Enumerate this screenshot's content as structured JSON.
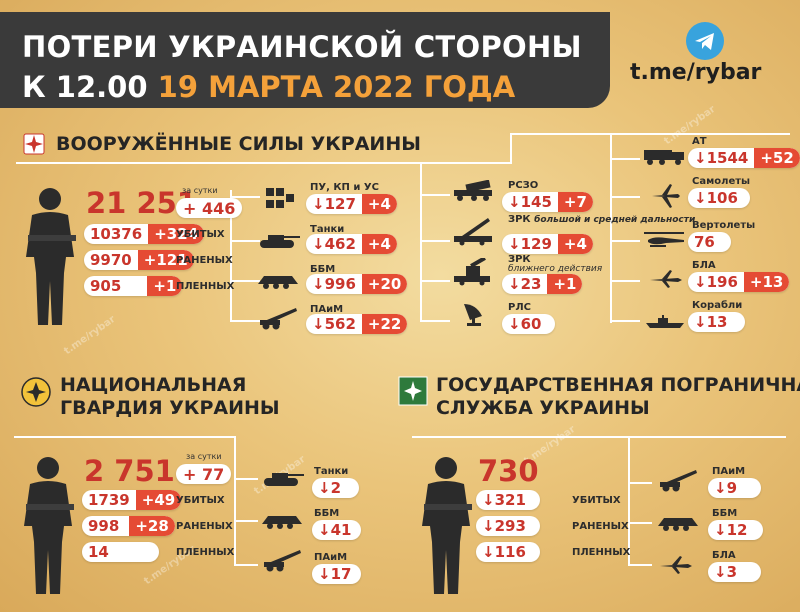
{
  "header": {
    "line1": "ПОТЕРИ УКРАИНСКОЙ СТОРОНЫ",
    "line2_prefix": "К 12.00",
    "line2_date": "19 МАРТА 2022 ГОДА"
  },
  "brand": {
    "text": "t.me/rybar",
    "icon": "telegram-icon"
  },
  "vsu": {
    "title": "ВООРУЖЁННЫЕ СИЛЫ УКРАИНЫ",
    "total": "21 251",
    "per_day_label": "за сутки",
    "per_day": "+ 446",
    "killed": "10376",
    "killed_delta": "+324",
    "killed_label": "УБИТЫХ",
    "wounded": "9970",
    "wounded_delta": "+121",
    "wounded_label": "РАНЕНЫХ",
    "captured": "905",
    "captured_delta": "+1",
    "captured_label": "ПЛЕННЫХ",
    "col1": [
      {
        "label": "ПУ, КП и УС",
        "value": "↓127",
        "delta": "+4",
        "icon": "command-post-icon"
      },
      {
        "label": "Танки",
        "value": "↓462",
        "delta": "+4",
        "icon": "tank-icon"
      },
      {
        "label": "ББМ",
        "value": "↓996",
        "delta": "+20",
        "icon": "apc-icon"
      },
      {
        "label": "ПАиМ",
        "value": "↓562",
        "delta": "+22",
        "icon": "artillery-icon"
      }
    ],
    "col2": [
      {
        "label": "РСЗО",
        "sub": "",
        "value": "↓145",
        "delta": "+7",
        "icon": "mlrs-icon"
      },
      {
        "label": "ЗРК",
        "sub": "большой и средней дальности",
        "value": "↓129",
        "delta": "+4",
        "icon": "sam-long-icon"
      },
      {
        "label": "ЗРК",
        "sub": "ближнего действия",
        "value": "↓23",
        "delta": "+1",
        "icon": "sam-short-icon"
      },
      {
        "label": "РЛС",
        "sub": "",
        "value": "↓60",
        "delta": "",
        "icon": "radar-icon"
      }
    ],
    "col3": [
      {
        "label": "АТ",
        "value": "↓1544",
        "delta": "+52",
        "icon": "truck-icon"
      },
      {
        "label": "Самолеты",
        "value": "↓106",
        "delta": "",
        "icon": "jet-icon"
      },
      {
        "label": "Вертолеты",
        "value": "76",
        "delta": "",
        "icon": "helicopter-icon"
      },
      {
        "label": "БЛА",
        "value": "↓196",
        "delta": "+13",
        "icon": "drone-icon"
      },
      {
        "label": "Корабли",
        "value": "↓13",
        "delta": "",
        "icon": "ship-icon"
      }
    ]
  },
  "ngu": {
    "title_l1": "НАЦИОНАЛЬНАЯ",
    "title_l2": "ГВАРДИЯ УКРАИНЫ",
    "total": "2 751",
    "per_day_label": "за сутки",
    "per_day": "+ 77",
    "killed": "1739",
    "killed_delta": "+49",
    "killed_label": "УБИТЫХ",
    "wounded": "998",
    "wounded_delta": "+28",
    "wounded_label": "РАНЕНЫХ",
    "captured": "14",
    "captured_label": "ПЛЕННЫХ",
    "equip": [
      {
        "label": "Танки",
        "value": "↓2",
        "icon": "tank-icon"
      },
      {
        "label": "ББМ",
        "value": "↓41",
        "icon": "apc-icon"
      },
      {
        "label": "ПАиМ",
        "value": "↓17",
        "icon": "artillery-icon"
      }
    ]
  },
  "gpsu": {
    "title_l1": "ГОСУДАРСТВЕННАЯ ПОГРАНИЧНАЯ",
    "title_l2": "СЛУЖБА УКРАИНЫ",
    "total": "730",
    "killed": "↓321",
    "killed_label": "УБИТЫХ",
    "wounded": "↓293",
    "wounded_label": "РАНЕНЫХ",
    "captured": "↓116",
    "captured_label": "ПЛЕННЫХ",
    "equip": [
      {
        "label": "ПАиМ",
        "value": "↓9",
        "icon": "artillery-icon"
      },
      {
        "label": "ББМ",
        "value": "↓12",
        "icon": "apc-icon"
      },
      {
        "label": "БЛА",
        "value": "↓3",
        "icon": "drone-icon"
      }
    ]
  },
  "watermark": "t.me/rybar",
  "colors": {
    "accent": "#e54b34",
    "header": "#3a3a3a",
    "date": "#f4a13a",
    "number": "#c9352c"
  }
}
